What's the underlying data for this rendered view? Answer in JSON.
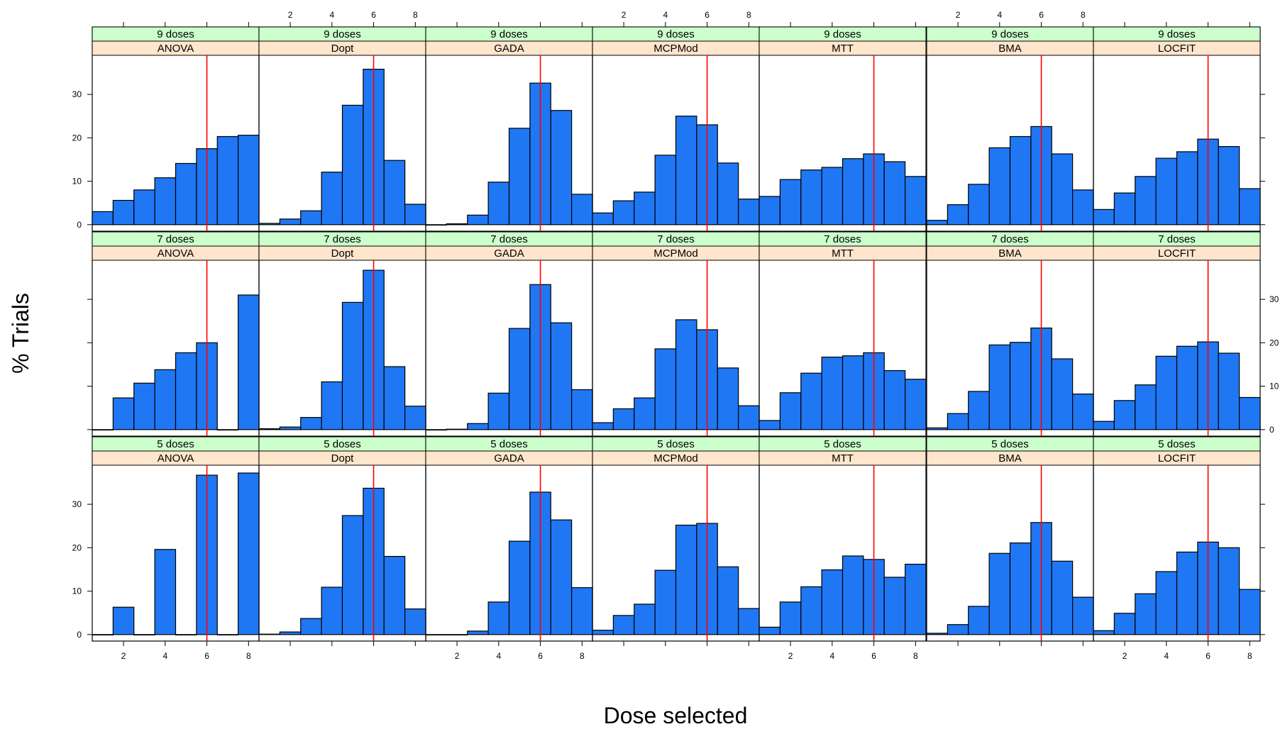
{
  "chart_data": {
    "type": "bar",
    "xlabel": "Dose selected",
    "ylabel": "% Trials",
    "xlim": [
      0.5,
      8.5
    ],
    "ylim": [
      -1.5,
      39
    ],
    "x_ticks": [
      2,
      4,
      6,
      8
    ],
    "y_ticks": [
      0,
      10,
      20,
      30
    ],
    "reference_line_x": 6,
    "bar_color": "#1f77f4",
    "reference_line_color": "#ff0000",
    "strip_colors": {
      "doses": "#ccffcc",
      "method": "#ffe5cc"
    },
    "doses_levels": [
      "9 doses",
      "7 doses",
      "5 doses"
    ],
    "methods": [
      "ANOVA",
      "Dopt",
      "GADA",
      "MCPMod",
      "MTT",
      "BMA",
      "LOCFIT"
    ],
    "panels": [
      {
        "doses": "9 doses",
        "method": "ANOVA",
        "x": [
          1,
          2,
          3,
          4,
          5,
          6,
          7,
          8
        ],
        "values": [
          3.0,
          5.6,
          8.0,
          10.8,
          14.1,
          17.5,
          20.3,
          20.6
        ]
      },
      {
        "doses": "9 doses",
        "method": "Dopt",
        "x": [
          1,
          2,
          3,
          4,
          5,
          6,
          7,
          8
        ],
        "values": [
          0.3,
          1.3,
          3.2,
          12.1,
          27.5,
          35.8,
          14.8,
          4.7
        ]
      },
      {
        "doses": "9 doses",
        "method": "GADA",
        "x": [
          1,
          2,
          3,
          4,
          5,
          6,
          7,
          8
        ],
        "values": [
          0.0,
          0.2,
          2.2,
          9.8,
          22.2,
          32.6,
          26.3,
          7.0
        ]
      },
      {
        "doses": "9 doses",
        "method": "MCPMod",
        "x": [
          1,
          2,
          3,
          4,
          5,
          6,
          7,
          8
        ],
        "values": [
          2.7,
          5.5,
          7.5,
          16.0,
          25.0,
          23.0,
          14.2,
          5.9
        ]
      },
      {
        "doses": "9 doses",
        "method": "MTT",
        "x": [
          1,
          2,
          3,
          4,
          5,
          6,
          7,
          8
        ],
        "values": [
          6.5,
          10.4,
          12.6,
          13.2,
          15.2,
          16.3,
          14.5,
          11.1
        ]
      },
      {
        "doses": "9 doses",
        "method": "BMA",
        "x": [
          1,
          2,
          3,
          4,
          5,
          6,
          7,
          8
        ],
        "values": [
          1.0,
          4.6,
          9.3,
          17.7,
          20.3,
          22.6,
          16.3,
          8.0
        ]
      },
      {
        "doses": "9 doses",
        "method": "LOCFIT",
        "x": [
          1,
          2,
          3,
          4,
          5,
          6,
          7,
          8
        ],
        "values": [
          3.5,
          7.3,
          11.1,
          15.3,
          16.8,
          19.7,
          18.0,
          8.3
        ]
      },
      {
        "doses": "7 doses",
        "method": "ANOVA",
        "x": [
          1,
          2,
          3,
          4,
          5,
          6,
          7,
          8
        ],
        "values": [
          0.0,
          7.3,
          10.7,
          13.8,
          17.7,
          20.0,
          0.0,
          31.0
        ]
      },
      {
        "doses": "7 doses",
        "method": "Dopt",
        "x": [
          1,
          2,
          3,
          4,
          5,
          6,
          7,
          8
        ],
        "values": [
          0.2,
          0.6,
          2.8,
          11.0,
          29.3,
          36.7,
          14.5,
          5.4
        ]
      },
      {
        "doses": "7 doses",
        "method": "GADA",
        "x": [
          1,
          2,
          3,
          4,
          5,
          6,
          7,
          8
        ],
        "values": [
          0.0,
          0.1,
          1.4,
          8.4,
          23.3,
          33.4,
          24.6,
          9.2
        ]
      },
      {
        "doses": "7 doses",
        "method": "MCPMod",
        "x": [
          1,
          2,
          3,
          4,
          5,
          6,
          7,
          8
        ],
        "values": [
          1.6,
          4.8,
          7.3,
          18.6,
          25.3,
          23.0,
          14.2,
          5.5
        ]
      },
      {
        "doses": "7 doses",
        "method": "MTT",
        "x": [
          1,
          2,
          3,
          4,
          5,
          6,
          7,
          8
        ],
        "values": [
          2.1,
          8.5,
          13.0,
          16.7,
          17.0,
          17.7,
          13.6,
          11.6
        ]
      },
      {
        "doses": "7 doses",
        "method": "BMA",
        "x": [
          1,
          2,
          3,
          4,
          5,
          6,
          7,
          8
        ],
        "values": [
          0.4,
          3.7,
          8.8,
          19.5,
          20.1,
          23.4,
          16.3,
          8.2
        ]
      },
      {
        "doses": "7 doses",
        "method": "LOCFIT",
        "x": [
          1,
          2,
          3,
          4,
          5,
          6,
          7,
          8
        ],
        "values": [
          1.9,
          6.7,
          10.3,
          16.9,
          19.2,
          20.2,
          17.6,
          7.4
        ]
      },
      {
        "doses": "5 doses",
        "method": "ANOVA",
        "x": [
          1,
          2,
          3,
          4,
          5,
          6,
          7,
          8
        ],
        "values": [
          0.0,
          6.3,
          0.0,
          19.6,
          0.0,
          36.7,
          0.0,
          37.2
        ]
      },
      {
        "doses": "5 doses",
        "method": "Dopt",
        "x": [
          1,
          2,
          3,
          4,
          5,
          6,
          7,
          8
        ],
        "values": [
          0.1,
          0.6,
          3.7,
          10.9,
          27.4,
          33.7,
          18.0,
          5.9
        ]
      },
      {
        "doses": "5 doses",
        "method": "GADA",
        "x": [
          1,
          2,
          3,
          4,
          5,
          6,
          7,
          8
        ],
        "values": [
          0.0,
          0.0,
          0.8,
          7.5,
          21.5,
          32.8,
          26.4,
          10.8
        ]
      },
      {
        "doses": "5 doses",
        "method": "MCPMod",
        "x": [
          1,
          2,
          3,
          4,
          5,
          6,
          7,
          8
        ],
        "values": [
          1.0,
          4.4,
          7.0,
          14.8,
          25.2,
          25.6,
          15.6,
          6.0
        ]
      },
      {
        "doses": "5 doses",
        "method": "MTT",
        "x": [
          1,
          2,
          3,
          4,
          5,
          6,
          7,
          8
        ],
        "values": [
          1.7,
          7.5,
          11.0,
          14.9,
          18.1,
          17.3,
          13.2,
          16.2
        ]
      },
      {
        "doses": "5 doses",
        "method": "BMA",
        "x": [
          1,
          2,
          3,
          4,
          5,
          6,
          7,
          8
        ],
        "values": [
          0.3,
          2.3,
          6.5,
          18.7,
          21.1,
          25.8,
          16.9,
          8.6
        ]
      },
      {
        "doses": "5 doses",
        "method": "LOCFIT",
        "x": [
          1,
          2,
          3,
          4,
          5,
          6,
          7,
          8
        ],
        "values": [
          0.9,
          4.9,
          9.4,
          14.5,
          19.0,
          21.3,
          20.0,
          10.4
        ]
      }
    ]
  }
}
